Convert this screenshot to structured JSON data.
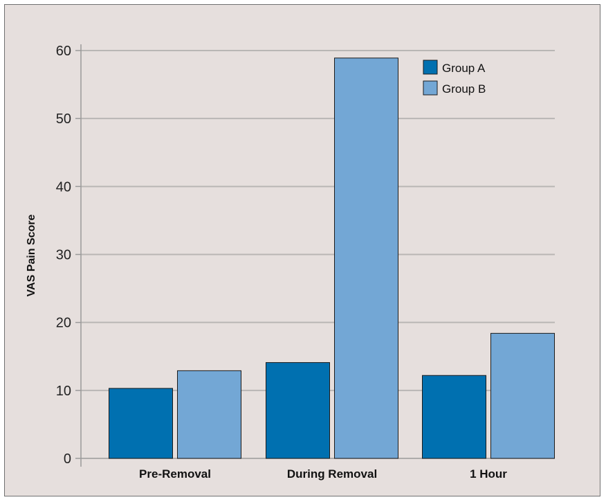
{
  "chart_data": {
    "type": "bar",
    "title": "",
    "xlabel": "",
    "ylabel": "VAS Pain Score",
    "ylim": [
      0,
      60
    ],
    "yticks": [
      0,
      10,
      20,
      30,
      40,
      50,
      60
    ],
    "grid": true,
    "legend_position": "top-right",
    "categories": [
      "Pre-Removal",
      "During Removal",
      "1 Hour"
    ],
    "series": [
      {
        "name": "Group A",
        "color": "#0070b0",
        "values": [
          10.3,
          14.1,
          12.2
        ]
      },
      {
        "name": "Group B",
        "color": "#73a7d5",
        "values": [
          12.9,
          58.9,
          18.4
        ]
      }
    ]
  }
}
